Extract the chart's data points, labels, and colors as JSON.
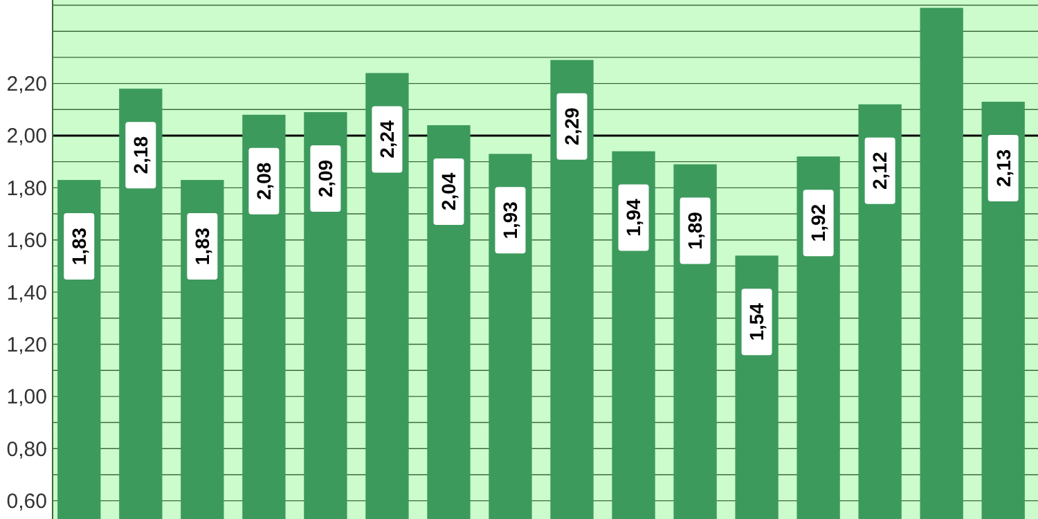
{
  "chart_data": {
    "type": "bar",
    "categories": [
      null,
      null,
      null,
      null,
      null,
      null,
      null,
      null,
      null,
      null,
      null,
      null,
      null,
      null,
      null,
      null
    ],
    "values": [
      1.83,
      2.18,
      1.83,
      2.08,
      2.09,
      2.24,
      2.04,
      1.93,
      2.29,
      1.94,
      1.89,
      1.54,
      1.92,
      2.12,
      2.49,
      2.13
    ],
    "value_labels": [
      "1,83",
      "2,18",
      "1,83",
      "2,08",
      "2,09",
      "2,24",
      "2,04",
      "1,93",
      "2,29",
      "1,94",
      "1,89",
      "1,54",
      "1,92",
      "2,12",
      null,
      "2,13"
    ],
    "color": "#3d9a5d",
    "ylim": [
      0.53,
      2.52
    ],
    "yticks": [
      {
        "value": 0.6,
        "label": "0,60"
      },
      {
        "value": 0.7,
        "label": null
      },
      {
        "value": 0.8,
        "label": "0,80"
      },
      {
        "value": 0.9,
        "label": null
      },
      {
        "value": 1.0,
        "label": "1,00"
      },
      {
        "value": 1.1,
        "label": null
      },
      {
        "value": 1.2,
        "label": "1,20"
      },
      {
        "value": 1.3,
        "label": null
      },
      {
        "value": 1.4,
        "label": "1,40"
      },
      {
        "value": 1.5,
        "label": null
      },
      {
        "value": 1.6,
        "label": "1,60"
      },
      {
        "value": 1.7,
        "label": null
      },
      {
        "value": 1.8,
        "label": "1,80"
      },
      {
        "value": 1.9,
        "label": null
      },
      {
        "value": 2.0,
        "label": "2,00"
      },
      {
        "value": 2.1,
        "label": null
      },
      {
        "value": 2.2,
        "label": "2,20"
      },
      {
        "value": 2.3,
        "label": null
      },
      {
        "value": 2.4,
        "label": null
      },
      {
        "value": 2.5,
        "label": null
      }
    ],
    "grid": "y",
    "tick_labels": "y",
    "ref_lines": [
      {
        "axis": "y",
        "value": 2.0,
        "color": "#000000"
      }
    ]
  }
}
